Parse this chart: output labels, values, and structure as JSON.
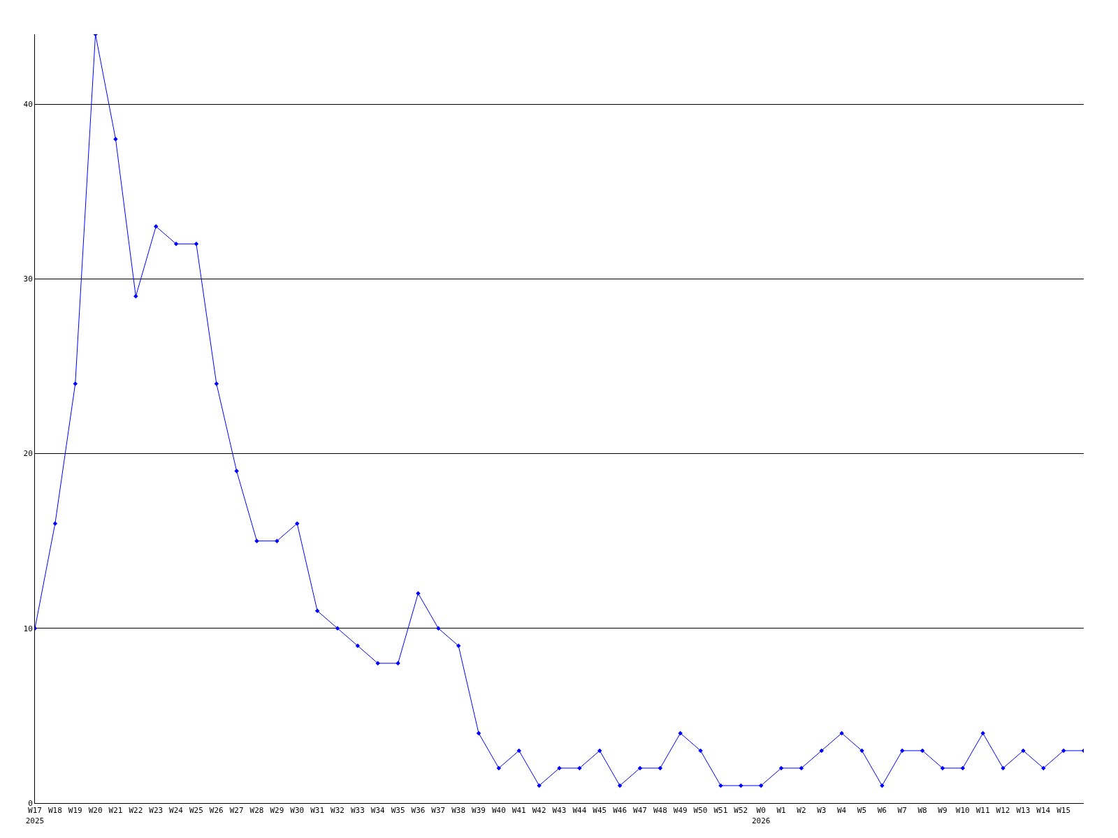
{
  "chart_data": {
    "type": "line",
    "categories": [
      "W17\n2025",
      "W18",
      "W19",
      "W20",
      "W21",
      "W22",
      "W23",
      "W24",
      "W25",
      "W26",
      "W27",
      "W28",
      "W29",
      "W30",
      "W31",
      "W32",
      "W33",
      "W34",
      "W35",
      "W36",
      "W37",
      "W38",
      "W39",
      "W40",
      "W41",
      "W42",
      "W43",
      "W44",
      "W45",
      "W46",
      "W47",
      "W48",
      "W49",
      "W50",
      "W51",
      "W52",
      "W0\n2026",
      "W1",
      "W2",
      "W3",
      "W4",
      "W5",
      "W6",
      "W7",
      "W8",
      "W9",
      "W10",
      "W11",
      "W12",
      "W13",
      "W14",
      "W15",
      null
    ],
    "series": [
      {
        "color": "#0000ff",
        "values": [
          10,
          16,
          24,
          44,
          38,
          29,
          33,
          32,
          32,
          24,
          19,
          15,
          15,
          16,
          11,
          10,
          9,
          8,
          8,
          12,
          10,
          9,
          4,
          2,
          3,
          1,
          2,
          2,
          3,
          1,
          2,
          2,
          4,
          3,
          1,
          1,
          1,
          2,
          2,
          3,
          4,
          3,
          1,
          3,
          3,
          2,
          2,
          4,
          2,
          3,
          2,
          3,
          3
        ]
      }
    ],
    "ylim": [
      0,
      44
    ],
    "yticks": [
      0,
      10,
      20,
      30,
      40
    ],
    "grid": "y",
    "marker": "diamond",
    "line_style": "solid"
  }
}
